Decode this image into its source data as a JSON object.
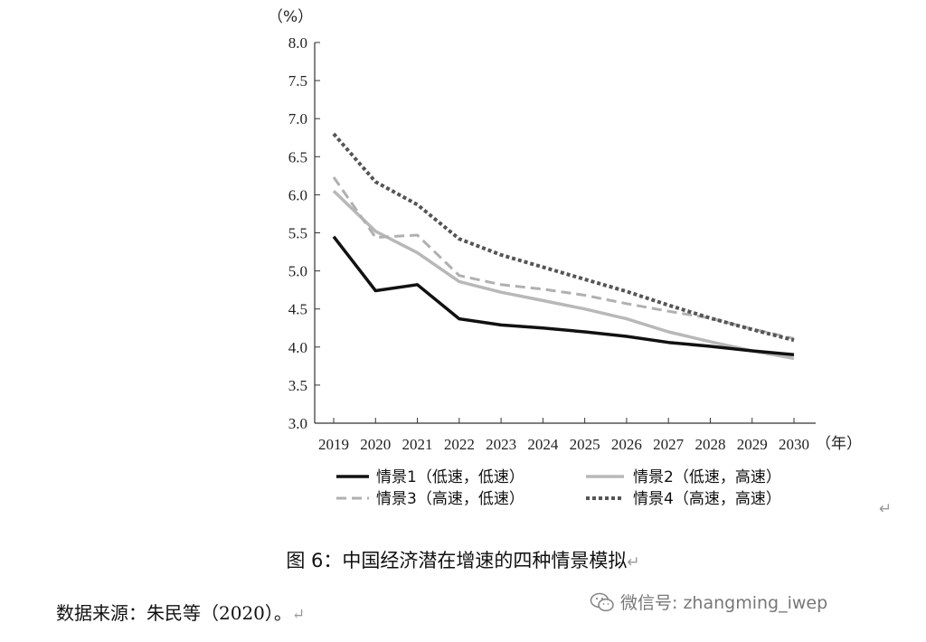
{
  "figure": {
    "caption": "图 6：中国经济潜在增速的四种情景模拟",
    "source_note": "数据来源：朱民等（2020）。",
    "watermark_text": "微信号: zhangming_iwep",
    "watermark_icon": "wechat-icon",
    "return_symbol": "↵"
  },
  "chart_data": {
    "type": "line",
    "title": "",
    "ylabel": "（%）",
    "xlabel": "（年）",
    "x": [
      "2019",
      "2020",
      "2021",
      "2022",
      "2023",
      "2024",
      "2025",
      "2026",
      "2027",
      "2028",
      "2029",
      "2030"
    ],
    "ylim": [
      3.0,
      8.0
    ],
    "yticks": [
      "3.0",
      "3.5",
      "4.0",
      "4.5",
      "5.0",
      "5.5",
      "6.0",
      "6.5",
      "7.0",
      "7.5",
      "8.0"
    ],
    "grid": false,
    "legend_position": "bottom",
    "series": [
      {
        "name": "情景1（低速，低速）",
        "values": [
          5.45,
          4.74,
          4.82,
          4.37,
          4.29,
          4.25,
          4.2,
          4.14,
          4.06,
          4.01,
          3.95,
          3.9
        ],
        "color": "#111111",
        "style": "solid"
      },
      {
        "name": "情景2（低速，高速）",
        "values": [
          6.05,
          5.52,
          5.24,
          4.86,
          4.72,
          4.61,
          4.5,
          4.37,
          4.2,
          4.07,
          3.95,
          3.85
        ],
        "color": "#b8b8b8",
        "style": "solid"
      },
      {
        "name": "情景3（高速，低速）",
        "values": [
          6.23,
          5.44,
          5.47,
          4.94,
          4.82,
          4.76,
          4.68,
          4.57,
          4.47,
          4.38,
          4.24,
          4.11
        ],
        "color": "#b0b0b0",
        "style": "dashed"
      },
      {
        "name": "情景4（高速，高速）",
        "values": [
          6.8,
          6.17,
          5.87,
          5.42,
          5.21,
          5.05,
          4.89,
          4.73,
          4.55,
          4.38,
          4.23,
          4.09
        ],
        "color": "#555555",
        "style": "dotted"
      }
    ]
  }
}
